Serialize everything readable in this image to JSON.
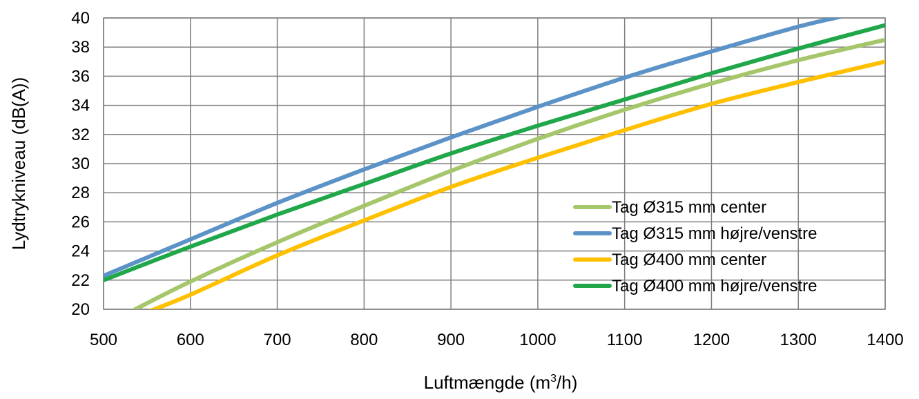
{
  "chart_data": {
    "type": "line",
    "title": "",
    "xlabel_prefix": "Luftmængde (m",
    "xlabel_sup": "3",
    "xlabel_suffix": "/h)",
    "ylabel": "Lydtrykniveau (dB(A))",
    "xlim": [
      500,
      1400
    ],
    "ylim": [
      20,
      40
    ],
    "x_ticks": [
      "500",
      "600",
      "700",
      "800",
      "900",
      "1000",
      "1100",
      "1200",
      "1300",
      "1400"
    ],
    "y_ticks": [
      "20",
      "22",
      "24",
      "26",
      "28",
      "30",
      "32",
      "34",
      "36",
      "38",
      "40"
    ],
    "grid": true,
    "legend_position": "right",
    "series": [
      {
        "name": "Tag Ø315 mm center",
        "color": "#a5c66a",
        "x": [
          530,
          600,
          700,
          800,
          900,
          1000,
          1100,
          1200,
          1300,
          1400
        ],
        "y": [
          19.8,
          21.9,
          24.6,
          27.1,
          29.5,
          31.7,
          33.7,
          35.5,
          37.1,
          38.5
        ]
      },
      {
        "name": "Tag Ø315 mm højre/venstre",
        "color": "#5b92c7",
        "x": [
          500,
          600,
          700,
          800,
          900,
          1000,
          1100,
          1200,
          1300,
          1350
        ],
        "y": [
          22.3,
          24.8,
          27.3,
          29.6,
          31.8,
          33.9,
          35.9,
          37.7,
          39.4,
          40.1
        ]
      },
      {
        "name": "Tag Ø400 mm center",
        "color": "#ffc000",
        "x": [
          550,
          600,
          700,
          800,
          900,
          1000,
          1100,
          1200,
          1300,
          1400
        ],
        "y": [
          19.8,
          21.0,
          23.7,
          26.1,
          28.4,
          30.4,
          32.3,
          34.1,
          35.6,
          37.0
        ]
      },
      {
        "name": "Tag Ø400 mm højre/venstre",
        "color": "#20a74a",
        "x": [
          500,
          600,
          700,
          800,
          900,
          1000,
          1100,
          1200,
          1300,
          1400
        ],
        "y": [
          22.0,
          24.3,
          26.5,
          28.6,
          30.7,
          32.6,
          34.4,
          36.2,
          37.9,
          39.5
        ]
      }
    ]
  }
}
